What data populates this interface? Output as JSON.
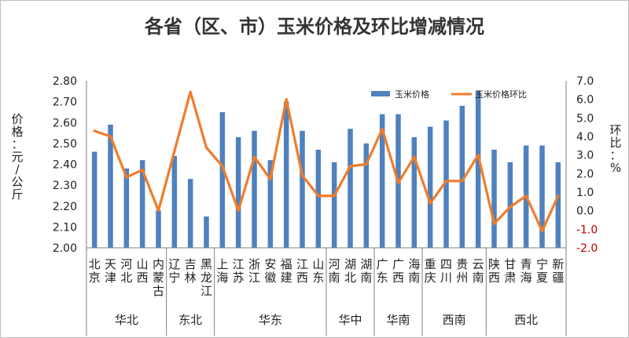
{
  "chart_data": {
    "type": "bar",
    "title": "各省（区、市）玉米价格及环比增减情况",
    "ylabel": "价格：元/公斤",
    "y2label": "环比：%",
    "ylim": [
      2.0,
      2.8
    ],
    "y2lim": [
      -2.0,
      7.0
    ],
    "yticks": [
      "2.00",
      "2.10",
      "2.20",
      "2.30",
      "2.40",
      "2.50",
      "2.60",
      "2.70",
      "2.80"
    ],
    "y2ticks": [
      "7.0",
      "6.0",
      "5.0",
      "4.0",
      "3.0",
      "2.0",
      "1.0",
      "0.0",
      "-1.0",
      "-2.0"
    ],
    "grid": false,
    "legend_position": "top-right",
    "categories": [
      "北京",
      "天津",
      "河北",
      "山西",
      "内蒙古",
      "辽宁",
      "吉林",
      "黑龙江",
      "上海",
      "江苏",
      "浙江",
      "安徽",
      "福建",
      "江西",
      "山东",
      "河南",
      "湖北",
      "湖南",
      "广东",
      "广西",
      "海南",
      "重庆",
      "四川",
      "贵州",
      "云南",
      "陕西",
      "甘肃",
      "青海",
      "宁夏",
      "新疆"
    ],
    "groups": [
      {
        "name": "华北",
        "count": 5
      },
      {
        "name": "东北",
        "count": 3
      },
      {
        "name": "华东",
        "count": 7
      },
      {
        "name": "华中",
        "count": 3
      },
      {
        "name": "华南",
        "count": 3
      },
      {
        "name": "西南",
        "count": 4
      },
      {
        "name": "西北",
        "count": 5
      }
    ],
    "series": [
      {
        "name": "玉米价格",
        "type": "bar",
        "axis": "left",
        "color": "#4f81bd",
        "values": [
          2.46,
          2.59,
          2.38,
          2.42,
          2.18,
          2.44,
          2.33,
          2.15,
          2.65,
          2.53,
          2.56,
          2.42,
          2.7,
          2.56,
          2.47,
          2.41,
          2.57,
          2.5,
          2.64,
          2.64,
          2.53,
          2.58,
          2.61,
          2.68,
          2.75,
          2.47,
          2.41,
          2.49,
          2.49,
          2.41
        ]
      },
      {
        "name": "玉米价格环比",
        "type": "line",
        "axis": "right",
        "color": "#f07c2a",
        "values": [
          4.3,
          4.0,
          1.8,
          2.2,
          0.0,
          3.2,
          6.4,
          3.4,
          2.4,
          0.0,
          2.9,
          1.7,
          6.0,
          1.9,
          0.8,
          0.8,
          2.4,
          2.5,
          4.4,
          1.5,
          2.9,
          0.4,
          1.6,
          1.6,
          3.0,
          -0.7,
          0.2,
          0.8,
          -1.1,
          0.8
        ]
      }
    ]
  }
}
